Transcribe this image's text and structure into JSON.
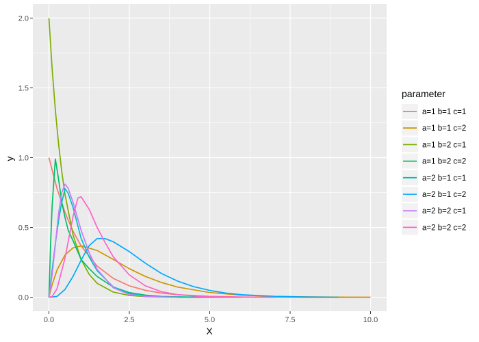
{
  "chart_data": {
    "type": "line",
    "xlabel": "X",
    "ylabel": "y",
    "xlim": [
      -0.5,
      10.5
    ],
    "ylim": [
      -0.1,
      2.1
    ],
    "x_ticks": [
      0,
      2.5,
      5,
      7.5,
      10
    ],
    "x_tick_labels": [
      "0.0",
      "2.5",
      "5.0",
      "7.5",
      "10.0"
    ],
    "y_ticks": [
      0,
      0.5,
      1,
      1.5,
      2
    ],
    "y_tick_labels": [
      "0.0",
      "0.5",
      "1.0",
      "1.5",
      "2.0"
    ],
    "grid": true,
    "legend_title": "parameter",
    "legend_position": "right",
    "series": [
      {
        "name": "a=1 b=1 c=1",
        "color": "#F8766D",
        "x": [
          0,
          0.25,
          0.5,
          0.75,
          1,
          1.5,
          2,
          2.5,
          3,
          3.5,
          4,
          5,
          6,
          7,
          8,
          9,
          10
        ],
        "y": [
          1.0,
          0.779,
          0.607,
          0.472,
          0.368,
          0.223,
          0.135,
          0.082,
          0.05,
          0.03,
          0.018,
          0.007,
          0.002,
          0.001,
          0.0,
          0.0,
          0.0
        ]
      },
      {
        "name": "a=1 b=1 c=2",
        "color": "#CD9600",
        "x": [
          0,
          0.1,
          0.25,
          0.5,
          0.75,
          1,
          1.5,
          2,
          2.5,
          3,
          3.5,
          4,
          5,
          6,
          7,
          8,
          9,
          10
        ],
        "y": [
          0.0,
          0.09,
          0.195,
          0.303,
          0.354,
          0.368,
          0.335,
          0.271,
          0.205,
          0.149,
          0.106,
          0.073,
          0.034,
          0.015,
          0.006,
          0.003,
          0.001,
          0.0
        ]
      },
      {
        "name": "a=1 b=2 c=1",
        "color": "#7CAE00",
        "x": [
          0,
          0.1,
          0.2,
          0.3,
          0.4,
          0.5,
          0.75,
          1,
          1.25,
          1.5,
          2,
          2.5,
          3,
          3.5,
          4,
          5
        ],
        "y": [
          2.0,
          1.637,
          1.341,
          1.098,
          0.899,
          0.736,
          0.446,
          0.271,
          0.164,
          0.1,
          0.037,
          0.013,
          0.005,
          0.002,
          0.001,
          0.0
        ]
      },
      {
        "name": "a=1 b=2 c=2",
        "color": "#00BE67",
        "x": [
          0,
          0.05,
          0.1,
          0.2,
          0.3,
          0.4,
          0.5,
          0.6,
          0.75,
          1,
          1.25,
          1.5,
          2,
          2.5,
          3,
          3.5,
          4,
          5
        ],
        "y": [
          0.0,
          0.362,
          0.655,
          0.99,
          0.845,
          0.68,
          0.571,
          0.48,
          0.404,
          0.271,
          0.205,
          0.149,
          0.073,
          0.034,
          0.015,
          0.006,
          0.003,
          0.0
        ]
      },
      {
        "name": "a=2 b=1 c=1",
        "color": "#00BFC4",
        "x": [
          0,
          0.1,
          0.2,
          0.3,
          0.4,
          0.5,
          0.6,
          0.75,
          1,
          1.25,
          1.5,
          2,
          2.5,
          3,
          3.5,
          4,
          5,
          6
        ],
        "y": [
          0.0,
          0.198,
          0.384,
          0.548,
          0.681,
          0.778,
          0.744,
          0.643,
          0.423,
          0.288,
          0.19,
          0.074,
          0.028,
          0.01,
          0.003,
          0.001,
          0.0,
          0.0
        ]
      },
      {
        "name": "a=2 b=1 c=2",
        "color": "#00A9FF",
        "x": [
          0,
          0.25,
          0.5,
          0.75,
          1,
          1.25,
          1.5,
          1.75,
          2,
          2.5,
          3,
          3.5,
          4,
          4.5,
          5,
          5.5,
          6,
          7,
          8,
          9
        ],
        "y": [
          0.0,
          0.006,
          0.056,
          0.15,
          0.265,
          0.37,
          0.421,
          0.42,
          0.398,
          0.327,
          0.244,
          0.17,
          0.116,
          0.076,
          0.049,
          0.03,
          0.018,
          0.007,
          0.002,
          0.0
        ]
      },
      {
        "name": "a=2 b=2 c=1",
        "color": "#C77CFF",
        "x": [
          0,
          0.1,
          0.2,
          0.3,
          0.4,
          0.5,
          0.6,
          0.75,
          1,
          1.25,
          1.5,
          2,
          2.5,
          3,
          3.5,
          4
        ],
        "y": [
          0.0,
          0.16,
          0.38,
          0.6,
          0.75,
          0.81,
          0.78,
          0.68,
          0.48,
          0.32,
          0.2,
          0.068,
          0.02,
          0.006,
          0.002,
          0.0
        ]
      },
      {
        "name": "a=2 b=2 c=2",
        "color": "#FF61CC",
        "x": [
          0,
          0.1,
          0.25,
          0.5,
          0.75,
          0.9,
          1,
          1.25,
          1.5,
          1.75,
          2,
          2.5,
          3,
          3.5,
          4,
          4.5,
          5,
          6,
          7
        ],
        "y": [
          0.0,
          0.006,
          0.06,
          0.28,
          0.58,
          0.71,
          0.72,
          0.63,
          0.5,
          0.39,
          0.29,
          0.16,
          0.082,
          0.04,
          0.019,
          0.009,
          0.004,
          0.001,
          0.0
        ]
      }
    ]
  }
}
